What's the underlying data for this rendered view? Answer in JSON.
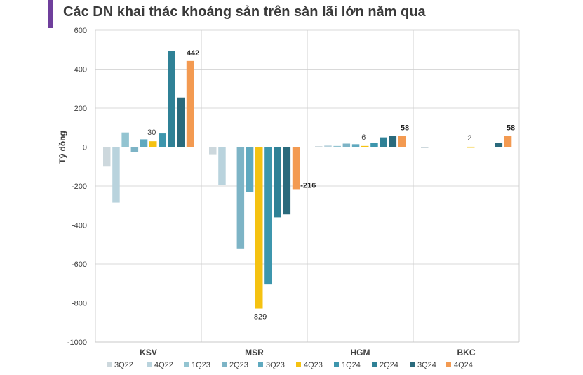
{
  "title": "Các DN khai thác khoáng sản trên sàn lãi lớn năm qua",
  "chart_data": {
    "type": "bar",
    "title": "Các DN khai thác khoáng sản trên sàn lãi lớn năm qua",
    "ylabel": "Tỷ đồng",
    "xlabel": "",
    "ylim": [
      -1000,
      600
    ],
    "yticks": [
      600,
      400,
      200,
      0,
      -200,
      -400,
      -600,
      -800,
      -1000
    ],
    "categories": [
      "KSV",
      "MSR",
      "HGM",
      "BKC"
    ],
    "legend_position": "bottom",
    "series": [
      {
        "name": "3Q22",
        "color": "#cdd8dd",
        "values": [
          -100,
          -40,
          5,
          -5
        ]
      },
      {
        "name": "4Q22",
        "color": "#b9d3dd",
        "values": [
          -285,
          -195,
          8,
          0
        ]
      },
      {
        "name": "1Q23",
        "color": "#93c4d1",
        "values": [
          75,
          0,
          6,
          0
        ]
      },
      {
        "name": "2Q23",
        "color": "#7db4c6",
        "values": [
          -25,
          -520,
          18,
          0
        ]
      },
      {
        "name": "3Q23",
        "color": "#5fa9bf",
        "values": [
          40,
          -230,
          15,
          0
        ]
      },
      {
        "name": "4Q23",
        "color": "#f5c211",
        "values": [
          30,
          -829,
          6,
          2
        ]
      },
      {
        "name": "1Q24",
        "color": "#3d96ad",
        "values": [
          70,
          -705,
          20,
          0
        ]
      },
      {
        "name": "2Q24",
        "color": "#2f8196",
        "values": [
          495,
          -360,
          50,
          0
        ]
      },
      {
        "name": "3Q24",
        "color": "#2a6a7c",
        "values": [
          255,
          -345,
          58,
          20
        ]
      },
      {
        "name": "4Q24",
        "color": "#f39a51",
        "values": [
          442,
          -216,
          58,
          58
        ]
      }
    ],
    "data_labels": [
      {
        "category": "KSV",
        "series": "4Q23",
        "text": "30",
        "bold": false
      },
      {
        "category": "KSV",
        "series": "4Q24",
        "text": "442",
        "bold": true
      },
      {
        "category": "MSR",
        "series": "4Q23",
        "text": "-829",
        "bold": false
      },
      {
        "category": "MSR",
        "series": "4Q24",
        "text": "-216",
        "bold": true
      },
      {
        "category": "HGM",
        "series": "4Q23",
        "text": "6",
        "bold": false
      },
      {
        "category": "HGM",
        "series": "4Q24",
        "text": "58",
        "bold": true
      },
      {
        "category": "BKC",
        "series": "4Q23",
        "text": "2",
        "bold": false
      },
      {
        "category": "BKC",
        "series": "4Q24",
        "text": "58",
        "bold": true
      }
    ]
  }
}
